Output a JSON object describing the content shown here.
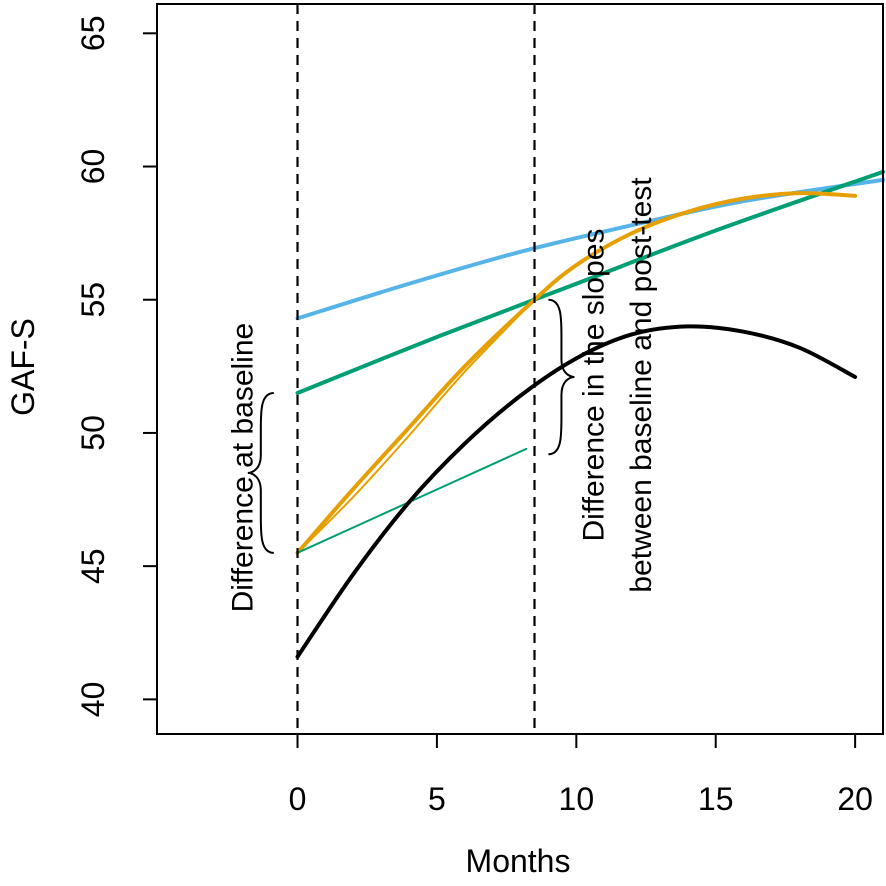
{
  "chart_data": {
    "type": "line",
    "title": "",
    "xlabel": "Months",
    "ylabel": "GAF-S",
    "xlim": [
      -5.04,
      21.0
    ],
    "ylim": [
      38.7,
      66.1
    ],
    "xticks": [
      0,
      5,
      10,
      15,
      20
    ],
    "yticks": [
      40,
      45,
      50,
      55,
      60,
      65
    ],
    "grid": false,
    "vlines": [
      0,
      8.5
    ],
    "series": [
      {
        "name": "blue",
        "color": "#56b4e9",
        "width": 4,
        "x": [
          0,
          4,
          8,
          12,
          16,
          21
        ],
        "y": [
          54.3,
          55.6,
          56.8,
          57.8,
          58.7,
          59.5
        ]
      },
      {
        "name": "green",
        "color": "#009e73",
        "width": 4,
        "x": [
          0,
          5,
          10,
          15,
          21
        ],
        "y": [
          51.5,
          53.6,
          55.6,
          57.6,
          59.8
        ]
      },
      {
        "name": "orange",
        "color": "#e69f00",
        "width": 4,
        "x": [
          0,
          2,
          4,
          6,
          8.5,
          10,
          12,
          14,
          16,
          18,
          20
        ],
        "y": [
          45.5,
          47.9,
          50.2,
          52.5,
          55.0,
          56.3,
          57.5,
          58.3,
          58.8,
          59.0,
          58.9
        ]
      },
      {
        "name": "orange-thin",
        "color": "#e69f00",
        "width": 2,
        "x": [
          0,
          2,
          4,
          6,
          8.5
        ],
        "y": [
          45.5,
          47.6,
          49.9,
          52.3,
          55.0
        ]
      },
      {
        "name": "green-thin",
        "color": "#009e73",
        "width": 2,
        "x": [
          0,
          8.2
        ],
        "y": [
          45.5,
          49.4
        ]
      },
      {
        "name": "black",
        "color": "#000000",
        "width": 4,
        "x": [
          0,
          2,
          4,
          6,
          8,
          10,
          12,
          14,
          16,
          18,
          20
        ],
        "y": [
          41.6,
          44.7,
          47.4,
          49.6,
          51.4,
          52.8,
          53.7,
          54.0,
          53.8,
          53.2,
          52.1
        ]
      }
    ],
    "annotations": [
      {
        "id": "baseline",
        "text": "Difference at baseline",
        "x": -1.9,
        "y": 48.7,
        "rotate": -90,
        "brace_x": -0.85,
        "brace_y": [
          45.5,
          51.5
        ]
      },
      {
        "id": "slopes_line1",
        "text": "Difference in the slopes",
        "x": 10.7,
        "y": 51.8,
        "rotate": -90
      },
      {
        "id": "slopes_line2",
        "text": "between baseline and post-test",
        "x": 12.4,
        "y": 51.8,
        "rotate": -90
      },
      {
        "id": "slopes_brace",
        "text": "",
        "brace_x": 9.0,
        "brace_y": [
          49.2,
          55.0
        ]
      }
    ]
  }
}
